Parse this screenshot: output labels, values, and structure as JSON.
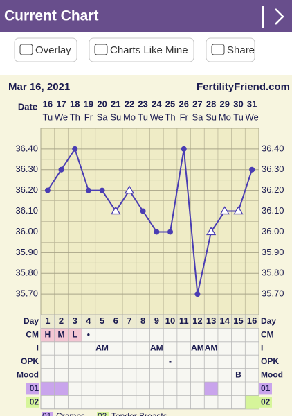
{
  "header": {
    "title": "Current Chart"
  },
  "buttons": [
    "Overlay",
    "Charts Like Mine",
    "Share"
  ],
  "chart_data": {
    "type": "line",
    "date": "Mar 16, 2021",
    "source": "FertilityFriend.com",
    "x_label": "Date",
    "categories": [
      "16",
      "17",
      "18",
      "19",
      "20",
      "21",
      "22",
      "23",
      "24",
      "25",
      "26",
      "27",
      "28",
      "29",
      "30",
      "31"
    ],
    "weekdays": [
      "Tu",
      "We",
      "Th",
      "Fr",
      "Sa",
      "Su",
      "Mo",
      "Tu",
      "We",
      "Th",
      "Fr",
      "Sa",
      "Su",
      "Mo",
      "Tu",
      "We"
    ],
    "series": [
      {
        "color": "#4a3db3",
        "values": [
          36.2,
          36.3,
          36.4,
          36.2,
          36.2,
          36.1,
          36.2,
          36.1,
          36.0,
          36.0,
          36.4,
          35.7,
          36.0,
          36.1,
          36.1,
          36.3
        ],
        "markers": [
          "circle",
          "circle",
          "circle",
          "circle",
          "circle",
          "triangle",
          "triangle",
          "circle",
          "circle",
          "circle",
          "circle",
          "circle",
          "triangle",
          "triangle",
          "triangle",
          "circle"
        ]
      }
    ],
    "ylim": [
      35.6,
      36.5
    ],
    "yticks": [
      {
        "value": 35.7,
        "label": "35.70"
      },
      {
        "value": 35.8,
        "label": "35.80"
      },
      {
        "value": 35.9,
        "label": "35.90"
      },
      {
        "value": 36.0,
        "label": "36.00"
      },
      {
        "value": 36.1,
        "label": "36.10"
      },
      {
        "value": 36.2,
        "label": "36.20"
      },
      {
        "value": 36.3,
        "label": "36.30"
      },
      {
        "value": 36.4,
        "label": "36.40"
      }
    ],
    "grid": true
  },
  "table": {
    "header": "Day",
    "days": [
      1,
      2,
      3,
      4,
      5,
      6,
      7,
      8,
      9,
      10,
      11,
      12,
      13,
      14,
      15,
      16
    ],
    "rows": [
      {
        "label": "CM",
        "cells": [
          "H",
          "M",
          "L",
          "•",
          null,
          null,
          null,
          null,
          null,
          null,
          null,
          null,
          null,
          null,
          null,
          null
        ],
        "filled": [
          true,
          true,
          true,
          false,
          false,
          false,
          false,
          false,
          false,
          false,
          false,
          false,
          false,
          false,
          false,
          false
        ],
        "fill": "#f3c6d3"
      },
      {
        "label": "I",
        "cells": [
          null,
          null,
          null,
          null,
          "AM",
          null,
          null,
          null,
          "AM",
          null,
          null,
          "AM",
          "AM",
          null,
          null,
          null
        ]
      },
      {
        "label": "OPK",
        "cells": [
          null,
          null,
          null,
          null,
          null,
          null,
          null,
          null,
          null,
          "-",
          null,
          null,
          null,
          null,
          null,
          null
        ]
      },
      {
        "label": "Mood",
        "cells": [
          null,
          null,
          null,
          null,
          null,
          null,
          null,
          null,
          null,
          null,
          null,
          null,
          null,
          null,
          "B",
          null
        ]
      },
      {
        "label": "01",
        "filled": [
          true,
          true,
          false,
          false,
          false,
          false,
          false,
          false,
          false,
          false,
          false,
          false,
          true,
          false,
          false,
          false
        ],
        "fill": "#c9a4ec"
      },
      {
        "label": "02",
        "filled": [
          false,
          false,
          false,
          false,
          false,
          false,
          false,
          false,
          false,
          false,
          false,
          false,
          false,
          false,
          false,
          true
        ],
        "fill": "#d6f59a"
      }
    ]
  },
  "legend": [
    {
      "code": "01",
      "text": "Cramps"
    },
    {
      "code": "02",
      "text": "Tender Breasts"
    }
  ]
}
